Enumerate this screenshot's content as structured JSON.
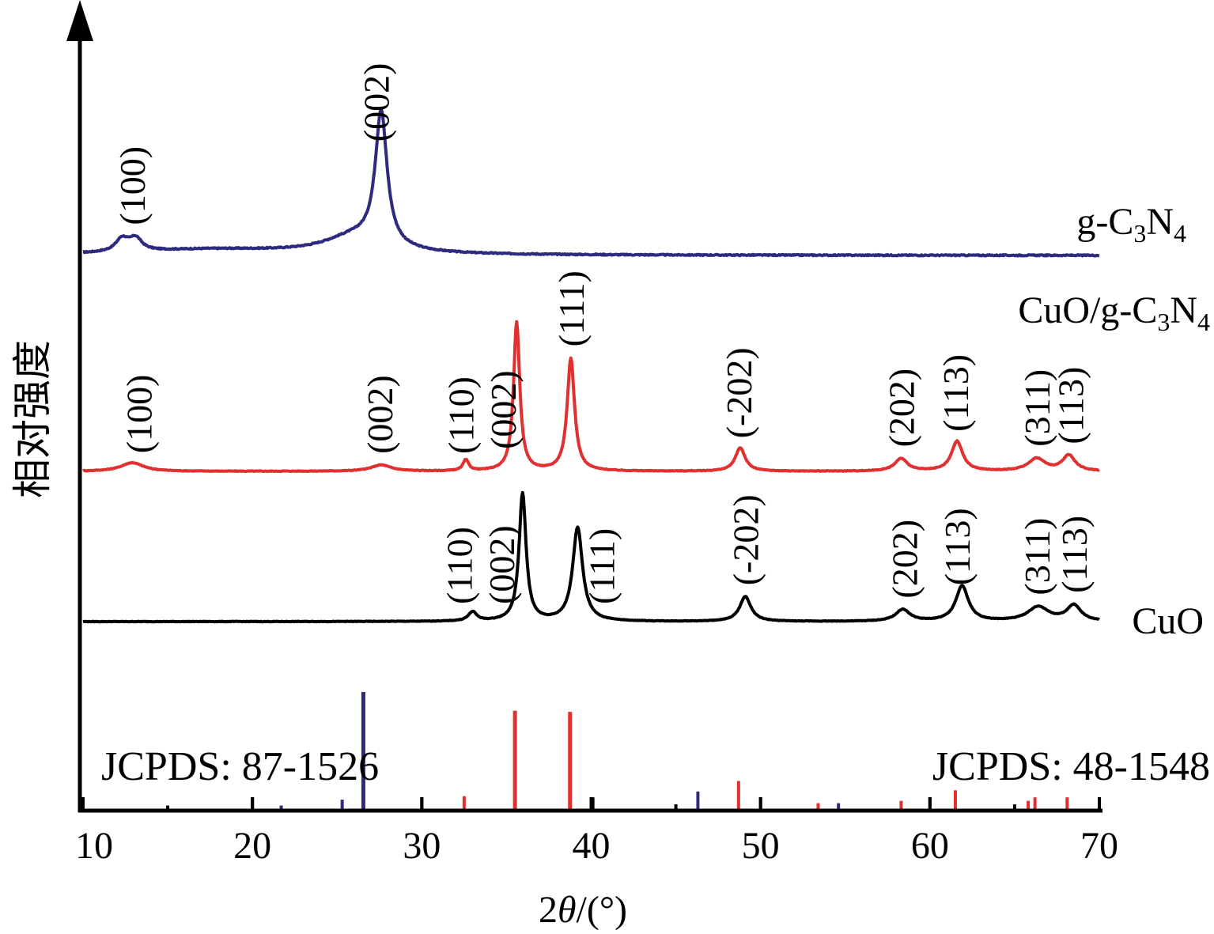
{
  "chart_data": {
    "type": "line",
    "xlabel_prefix": "2",
    "xlabel_symbol": "θ",
    "xlabel_suffix": "/(°)",
    "ylabel": "相对强度",
    "xlim": [
      10,
      70
    ],
    "x_ticks": [
      "10",
      "20",
      "30",
      "40",
      "50",
      "60",
      "70"
    ],
    "colors": {
      "g": "#2e2a7e",
      "composite": "#e03030",
      "cuo": "#000000"
    },
    "series": [
      {
        "key": "g",
        "name": "g-C3N4",
        "label_parts": [
          "g-C",
          "3",
          "N",
          "4"
        ],
        "baseline": 0.0,
        "noise": 0.008,
        "peaks": [
          {
            "x": 12.3,
            "h": 0.09,
            "w": 0.45
          },
          {
            "x": 13.1,
            "h": 0.09,
            "w": 0.45
          },
          {
            "x": 27.6,
            "h": 0.95,
            "w": 0.42
          },
          {
            "x": 26.0,
            "h": 0.12,
            "w": 2.2
          },
          {
            "x": 17.5,
            "h": 0.04,
            "w": 6.0
          }
        ],
        "annotations": [
          {
            "text": "(100)",
            "x": 12.9
          },
          {
            "text": "(002)",
            "x": 27.3
          }
        ]
      },
      {
        "key": "composite",
        "name": "CuO/g-C3N4",
        "label_parts": [
          "CuO/g-C",
          "3",
          "N",
          "4"
        ],
        "baseline": 0.0,
        "noise": 0.004,
        "peaks": [
          {
            "x": 12.9,
            "h": 0.055,
            "w": 0.8
          },
          {
            "x": 27.6,
            "h": 0.04,
            "w": 0.7
          },
          {
            "x": 32.6,
            "h": 0.07,
            "w": 0.2
          },
          {
            "x": 35.6,
            "h": 0.95,
            "w": 0.22
          },
          {
            "x": 38.8,
            "h": 0.72,
            "w": 0.26
          },
          {
            "x": 48.8,
            "h": 0.15,
            "w": 0.35
          },
          {
            "x": 58.3,
            "h": 0.08,
            "w": 0.45
          },
          {
            "x": 61.6,
            "h": 0.19,
            "w": 0.4
          },
          {
            "x": 66.3,
            "h": 0.08,
            "w": 0.6
          },
          {
            "x": 68.2,
            "h": 0.1,
            "w": 0.45
          }
        ],
        "annotations": [
          {
            "text": "(100)",
            "x": 13.3
          },
          {
            "text": "(002)",
            "x": 27.5
          },
          {
            "text": "(110)",
            "x": 32.3
          },
          {
            "text": "(002)",
            "x": 34.8
          },
          {
            "text": "(111)",
            "x": 38.8
          },
          {
            "text": "(-202)",
            "x": 48.7
          },
          {
            "text": "(202)",
            "x": 58.3
          },
          {
            "text": "(113)",
            "x": 61.5
          },
          {
            "text": "(311)",
            "x": 66.3
          },
          {
            "text": "(113)",
            "x": 68.3
          }
        ]
      },
      {
        "key": "cuo",
        "name": "CuO",
        "label_parts": [
          "CuO"
        ],
        "baseline": 0.0,
        "noise": 0.004,
        "peaks": [
          {
            "x": 33.0,
            "h": 0.07,
            "w": 0.3
          },
          {
            "x": 35.95,
            "h": 0.98,
            "w": 0.25
          },
          {
            "x": 39.2,
            "h": 0.72,
            "w": 0.35
          },
          {
            "x": 49.1,
            "h": 0.19,
            "w": 0.4
          },
          {
            "x": 58.4,
            "h": 0.09,
            "w": 0.5
          },
          {
            "x": 61.9,
            "h": 0.27,
            "w": 0.45
          },
          {
            "x": 66.4,
            "h": 0.11,
            "w": 0.75
          },
          {
            "x": 68.5,
            "h": 0.12,
            "w": 0.5
          }
        ],
        "annotations": [
          {
            "text": "(110)",
            "x": 32.2
          },
          {
            "text": "(002)",
            "x": 34.7
          },
          {
            "text": "(111)",
            "x": 40.6
          },
          {
            "text": "(-202)",
            "x": 49.1
          },
          {
            "text": "(202)",
            "x": 58.5
          },
          {
            "text": "(113)",
            "x": 61.6
          },
          {
            "text": "(311)",
            "x": 66.3
          },
          {
            "text": "(113)",
            "x": 68.5
          }
        ]
      }
    ],
    "reference_sticks": [
      {
        "x": 26.55,
        "h": 1.0,
        "color": "#2e2a7e"
      },
      {
        "x": 25.3,
        "h": 0.08,
        "color": "#2e2a7e"
      },
      {
        "x": 46.3,
        "h": 0.15,
        "color": "#2e2a7e"
      },
      {
        "x": 54.6,
        "h": 0.05,
        "color": "#2e2a7e"
      },
      {
        "x": 21.7,
        "h": 0.03,
        "color": "#2e2a7e"
      },
      {
        "x": 35.5,
        "h": 0.84,
        "color": "#e03030"
      },
      {
        "x": 38.75,
        "h": 0.83,
        "color": "#e03030"
      },
      {
        "x": 32.5,
        "h": 0.11,
        "color": "#e03030"
      },
      {
        "x": 48.7,
        "h": 0.24,
        "color": "#e03030"
      },
      {
        "x": 58.3,
        "h": 0.07,
        "color": "#e03030"
      },
      {
        "x": 61.5,
        "h": 0.16,
        "color": "#e03030"
      },
      {
        "x": 53.4,
        "h": 0.05,
        "color": "#e03030"
      },
      {
        "x": 65.8,
        "h": 0.07,
        "color": "#e03030"
      },
      {
        "x": 66.2,
        "h": 0.1,
        "color": "#e03030"
      },
      {
        "x": 68.1,
        "h": 0.1,
        "color": "#e03030"
      },
      {
        "x": 15.0,
        "h": 0.03,
        "color": "#000000"
      },
      {
        "x": 20.0,
        "h": 0.1,
        "color": "#000000"
      },
      {
        "x": 30.0,
        "h": 0.1,
        "color": "#000000"
      },
      {
        "x": 40.1,
        "h": 0.1,
        "color": "#000000"
      },
      {
        "x": 50.0,
        "h": 0.1,
        "color": "#000000"
      },
      {
        "x": 60.0,
        "h": 0.1,
        "color": "#000000"
      },
      {
        "x": 45.0,
        "h": 0.04,
        "color": "#000000"
      },
      {
        "x": 65.0,
        "h": 0.04,
        "color": "#000000"
      }
    ],
    "jcpds_left": "JCPDS: 87-1526",
    "jcpds_right": "JCPDS: 48-1548"
  }
}
